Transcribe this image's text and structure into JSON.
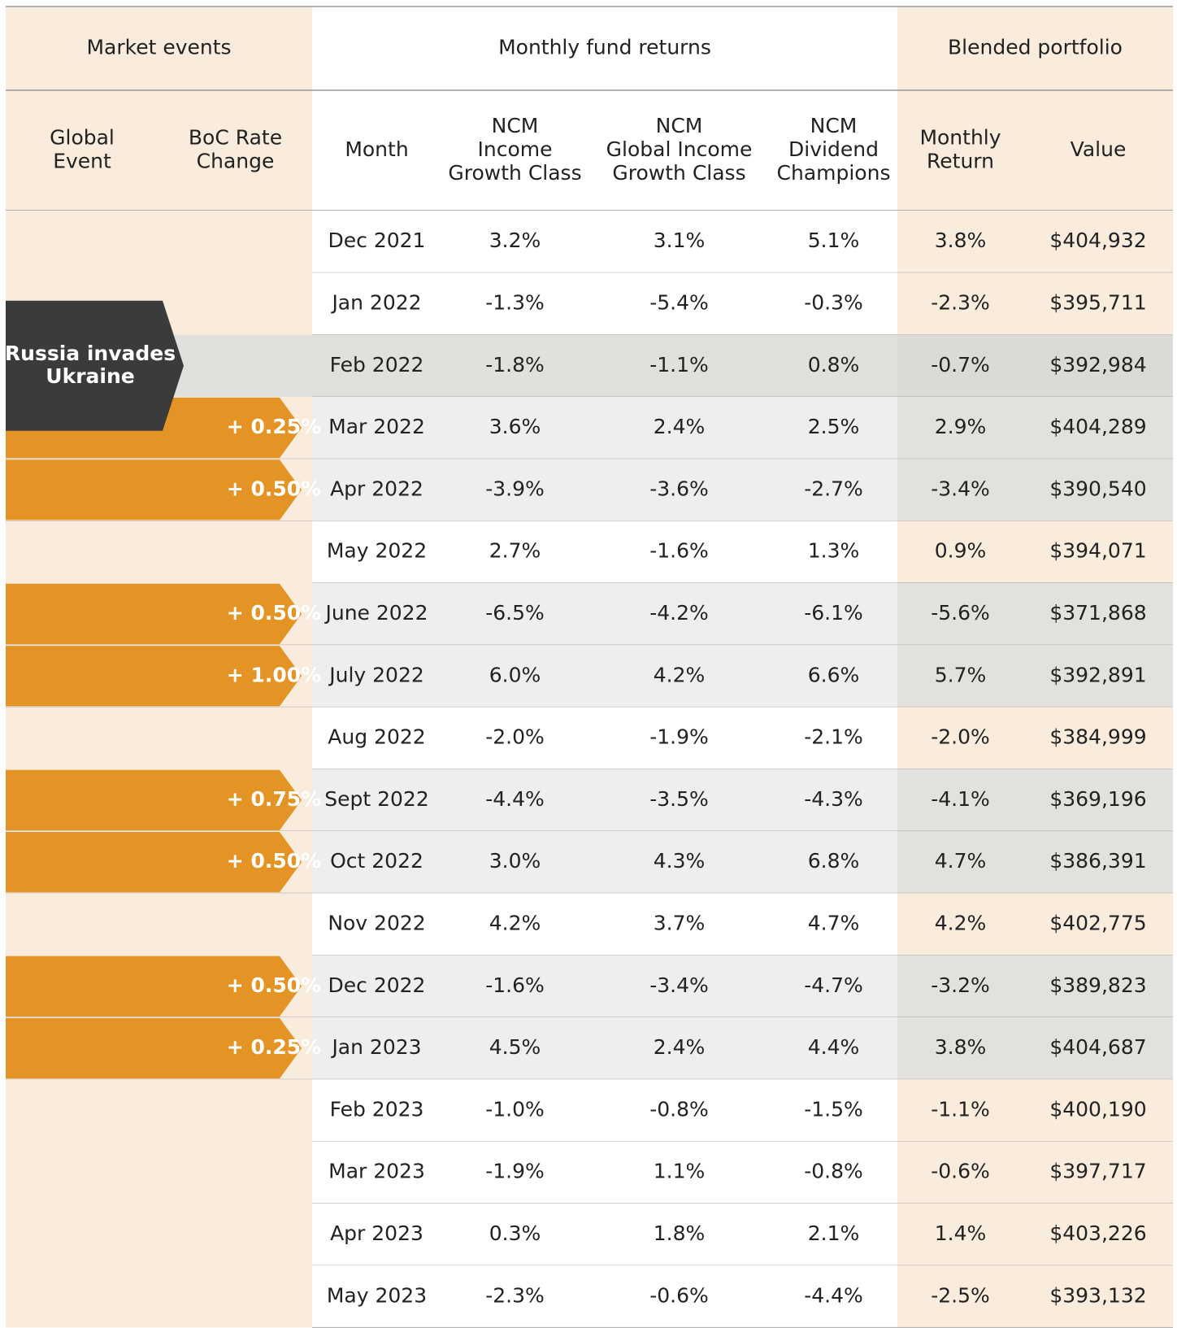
{
  "header": {
    "groups": [
      "Market events",
      "Monthly fund returns",
      "Blended portfolio"
    ],
    "columns": [
      [
        "Global",
        "Event"
      ],
      [
        "BoC Rate",
        "Change"
      ],
      [
        "Month"
      ],
      [
        "NCM",
        "Income",
        "Growth Class"
      ],
      [
        "NCM",
        "Global Income",
        "Growth Class"
      ],
      [
        "NCM",
        "Dividend",
        "Champions"
      ],
      [
        "Monthly",
        "Return"
      ],
      [
        "Value"
      ]
    ]
  },
  "table": {
    "rows": [
      {
        "month": "Dec 2021",
        "cells": [
          "3.2%",
          "3.1%",
          "5.1%",
          "3.8%",
          "$404,932"
        ]
      },
      {
        "month": "Jan 2022",
        "cells": [
          "-1.3%",
          "-5.4%",
          "-0.3%",
          "-2.3%",
          "$395,711"
        ]
      },
      {
        "month": "Feb 2022",
        "event": [
          "Russia invades",
          "Ukraine"
        ],
        "cells": [
          "-1.8%",
          "-1.1%",
          "0.8%",
          "-0.7%",
          "$392,984"
        ]
      },
      {
        "month": "Mar 2022",
        "rate_change": "+ 0.25%",
        "cells": [
          "3.6%",
          "2.4%",
          "2.5%",
          "2.9%",
          "$404,289"
        ]
      },
      {
        "month": "Apr 2022",
        "rate_change": "+ 0.50%",
        "cells": [
          "-3.9%",
          "-3.6%",
          "-2.7%",
          "-3.4%",
          "$390,540"
        ]
      },
      {
        "month": "May 2022",
        "cells": [
          "2.7%",
          "-1.6%",
          "1.3%",
          "0.9%",
          "$394,071"
        ]
      },
      {
        "month": "June 2022",
        "rate_change": "+ 0.50%",
        "cells": [
          "-6.5%",
          "-4.2%",
          "-6.1%",
          "-5.6%",
          "$371,868"
        ]
      },
      {
        "month": "July 2022",
        "rate_change": "+ 1.00%",
        "cells": [
          "6.0%",
          "4.2%",
          "6.6%",
          "5.7%",
          "$392,891"
        ]
      },
      {
        "month": "Aug 2022",
        "cells": [
          "-2.0%",
          "-1.9%",
          "-2.1%",
          "-2.0%",
          "$384,999"
        ]
      },
      {
        "month": "Sept 2022",
        "rate_change": "+ 0.75%",
        "cells": [
          "-4.4%",
          "-3.5%",
          "-4.3%",
          "-4.1%",
          "$369,196"
        ]
      },
      {
        "month": "Oct 2022",
        "rate_change": "+ 0.50%",
        "cells": [
          "3.0%",
          "4.3%",
          "6.8%",
          "4.7%",
          "$386,391"
        ]
      },
      {
        "month": "Nov 2022",
        "cells": [
          "4.2%",
          "3.7%",
          "4.7%",
          "4.2%",
          "$402,775"
        ]
      },
      {
        "month": "Dec 2022",
        "rate_change": "+ 0.50%",
        "cells": [
          "-1.6%",
          "-3.4%",
          "-4.7%",
          "-3.2%",
          "$389,823"
        ]
      },
      {
        "month": "Jan 2023",
        "rate_change": "+ 0.25%",
        "cells": [
          "4.5%",
          "2.4%",
          "4.4%",
          "3.8%",
          "$404,687"
        ]
      },
      {
        "month": "Feb 2023",
        "cells": [
          "-1.0%",
          "-0.8%",
          "-1.5%",
          "-1.1%",
          "$400,190"
        ]
      },
      {
        "month": "Mar 2023",
        "cells": [
          "-1.9%",
          "1.1%",
          "-0.8%",
          "-0.6%",
          "$397,717"
        ]
      },
      {
        "month": "Apr 2023",
        "cells": [
          "0.3%",
          "1.8%",
          "2.1%",
          "1.4%",
          "$403,226"
        ]
      },
      {
        "month": "May 2023",
        "cells": [
          "-2.3%",
          "-0.6%",
          "-4.4%",
          "-2.5%",
          "$393,132"
        ]
      }
    ]
  }
}
